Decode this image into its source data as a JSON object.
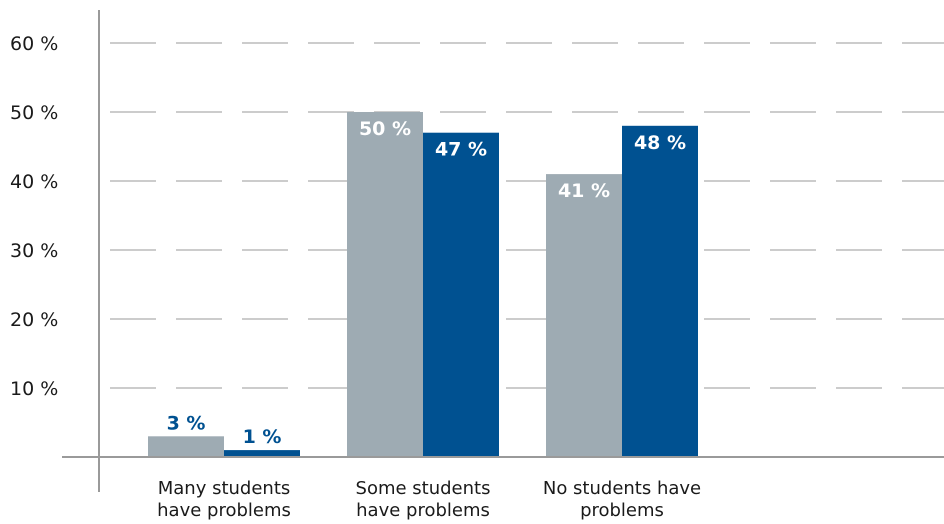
{
  "chart_data": {
    "type": "bar",
    "categories": [
      [
        "Many students",
        "have problems"
      ],
      [
        "Some students",
        "have problems"
      ],
      [
        "No students have",
        "problems"
      ]
    ],
    "series": [
      {
        "values": [
          3,
          50,
          41
        ],
        "labels": [
          "3 %",
          "50 %",
          "41 %"
        ],
        "color": "#9eabb3"
      },
      {
        "values": [
          1,
          47,
          48
        ],
        "labels": [
          "1 %",
          "47 %",
          "48 %"
        ],
        "color": "#005191"
      }
    ],
    "y_ticks": [
      "10 %",
      "20 %",
      "30 %",
      "40 %",
      "50 %",
      "60 %"
    ],
    "ylim": [
      0,
      60
    ],
    "grid": "dashed horizontal",
    "legend": "none",
    "label_colors": {
      "inside": "#ffffff",
      "above": "#005191"
    }
  }
}
